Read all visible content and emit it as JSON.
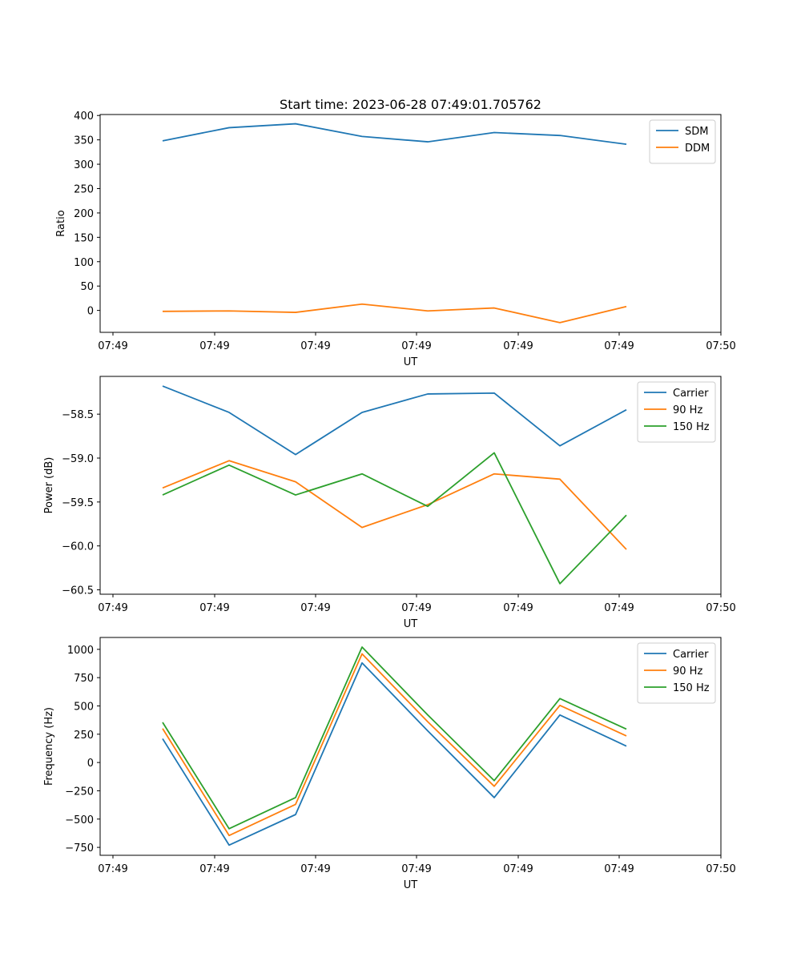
{
  "figure": {
    "suptitle": "Start time: 2023-06-28 07:49:01.705762"
  },
  "chart_data": [
    {
      "type": "line",
      "title": "",
      "xlabel": "UT",
      "ylabel": "Ratio",
      "x_tick_labels": [
        "07:49",
        "07:49",
        "07:49",
        "07:49",
        "07:49",
        "07:49",
        "07:49",
        "07:50"
      ],
      "ylim": [
        -45,
        402
      ],
      "y_ticks": [
        0,
        50,
        100,
        150,
        200,
        250,
        300,
        350,
        400
      ],
      "y_tick_labels": [
        "0",
        "50",
        "100",
        "150",
        "200",
        "250",
        "300",
        "350",
        "400"
      ],
      "legend_position": "top-right",
      "series": [
        {
          "name": "SDM",
          "color": "#1f77b4",
          "values": [
            348,
            375,
            383,
            357,
            346,
            365,
            359,
            341
          ]
        },
        {
          "name": "DDM",
          "color": "#ff7f0e",
          "values": [
            -2,
            -1,
            -4,
            13,
            -1,
            5,
            -25,
            8
          ]
        }
      ]
    },
    {
      "type": "line",
      "title": "",
      "xlabel": "UT",
      "ylabel": "Power (dB)",
      "x_tick_labels": [
        "07:49",
        "07:49",
        "07:49",
        "07:49",
        "07:49",
        "07:49",
        "07:49",
        "07:50"
      ],
      "ylim": [
        -60.55,
        -58.07
      ],
      "y_ticks": [
        -58.5,
        -59.0,
        -59.5,
        -60.0,
        -60.5
      ],
      "y_tick_labels": [
        "−58.5",
        "−59.0",
        "−59.5",
        "−60.0",
        "−60.5"
      ],
      "legend_position": "top-right",
      "series": [
        {
          "name": "Carrier",
          "color": "#1f77b4",
          "values": [
            -58.18,
            -58.48,
            -58.96,
            -58.48,
            -58.27,
            -58.26,
            -58.86,
            -58.45
          ]
        },
        {
          "name": "90 Hz",
          "color": "#ff7f0e",
          "values": [
            -59.34,
            -59.03,
            -59.27,
            -59.79,
            -59.53,
            -59.18,
            -59.24,
            -60.04
          ]
        },
        {
          "name": "150 Hz",
          "color": "#2ca02c",
          "values": [
            -59.42,
            -59.08,
            -59.42,
            -59.18,
            -59.55,
            -58.94,
            -60.43,
            -59.65
          ]
        }
      ]
    },
    {
      "type": "line",
      "title": "",
      "xlabel": "UT",
      "ylabel": "Frequency (Hz)",
      "x_tick_labels": [
        "07:49",
        "07:49",
        "07:49",
        "07:49",
        "07:49",
        "07:49",
        "07:49",
        "07:50"
      ],
      "ylim": [
        -820,
        1105
      ],
      "y_ticks": [
        -750,
        -500,
        -250,
        0,
        250,
        500,
        750,
        1000
      ],
      "y_tick_labels": [
        "−750",
        "−500",
        "−250",
        "0",
        "250",
        "500",
        "750",
        "1000"
      ],
      "legend_position": "top-right",
      "series": [
        {
          "name": "Carrier",
          "color": "#1f77b4",
          "values": [
            210,
            -730,
            -460,
            880,
            280,
            -310,
            420,
            145
          ]
        },
        {
          "name": "90 Hz",
          "color": "#ff7f0e",
          "values": [
            300,
            -645,
            -370,
            960,
            360,
            -210,
            505,
            235
          ]
        },
        {
          "name": "150 Hz",
          "color": "#2ca02c",
          "values": [
            355,
            -585,
            -310,
            1020,
            420,
            -160,
            565,
            295
          ]
        }
      ]
    }
  ]
}
